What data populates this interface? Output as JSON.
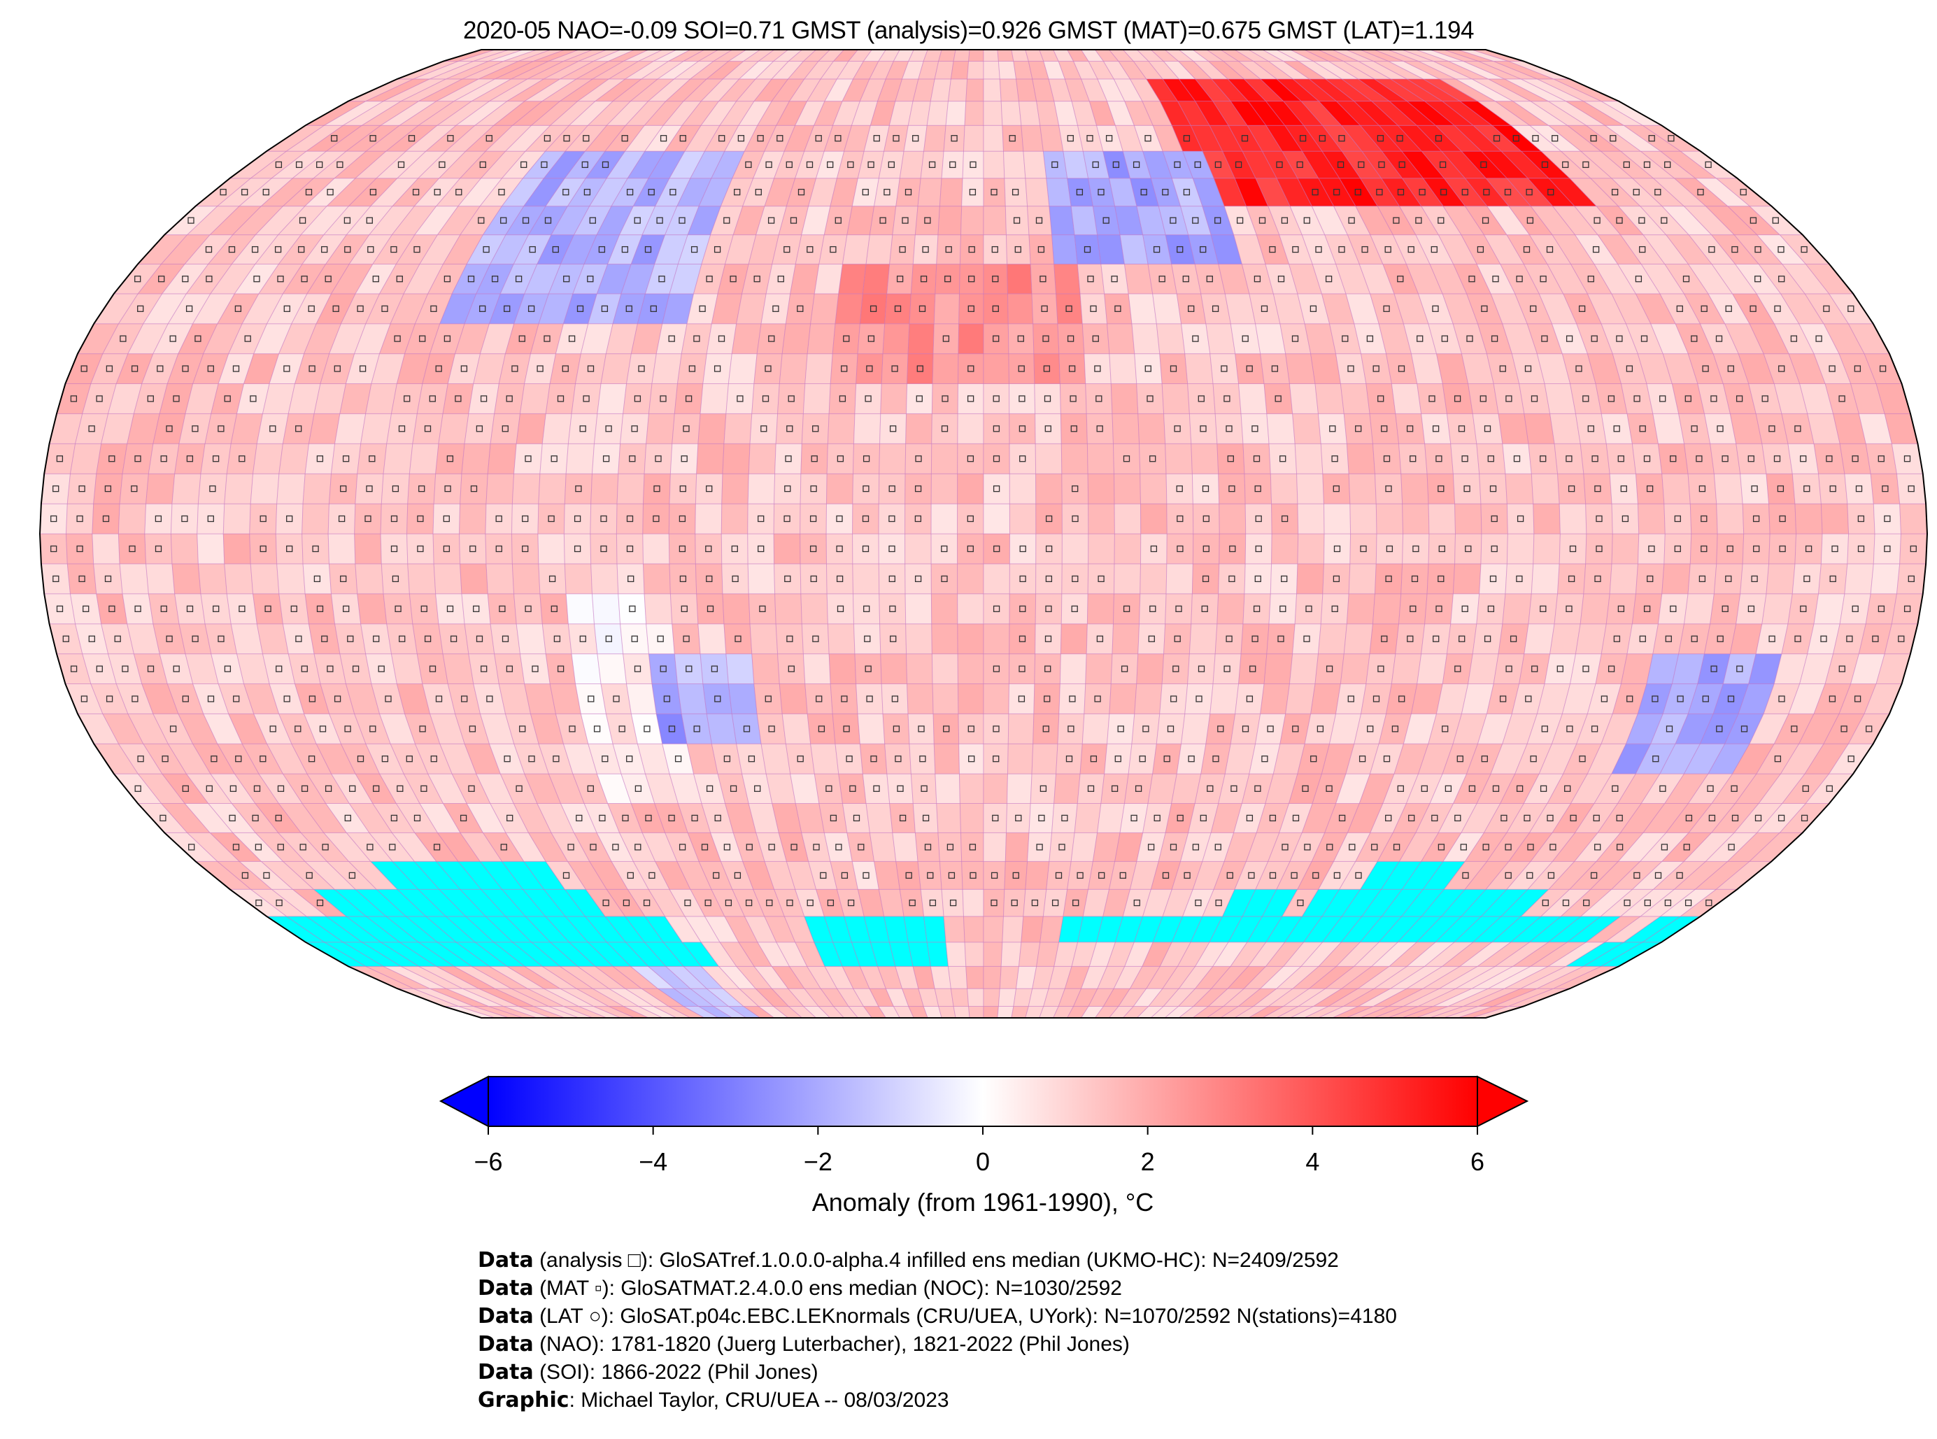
{
  "title": "2020-05 NAO=-0.09 SOI=0.71 GMST (analysis)=0.926 GMST (MAT)=0.675 GMST (LAT)=1.194",
  "map": {
    "projection": "Robinson",
    "grid_resolution_deg": 5,
    "missing_color": "#00ffff",
    "gridline_color": "#c070c0"
  },
  "colorbar": {
    "label": "Anomaly (from 1961-1990), °C",
    "min": -6,
    "max": 6,
    "ticks": [
      "−6",
      "−4",
      "−2",
      "0",
      "2",
      "4",
      "6"
    ],
    "tick_values": [
      -6,
      -4,
      -2,
      0,
      2,
      4,
      6
    ],
    "low_color": "#0000ff",
    "mid_color": "#ffffff",
    "high_color": "#ff0000"
  },
  "footer": [
    {
      "bold": "Data",
      "text": " (analysis □): GloSATref.1.0.0.0-alpha.4 infilled ens median (UKMO-HC): N=2409/2592"
    },
    {
      "bold": "Data",
      "text": " (MAT ▫): GloSATMAT.2.4.0.0 ens median (NOC): N=1030/2592"
    },
    {
      "bold": "Data",
      "text": " (LAT ○): GloSAT.p04c.EBC.LEKnormals (CRU/UEA, UYork): N=1070/2592 N(stations)=4180"
    },
    {
      "bold": "Data",
      "text": " (NAO): 1781-1820 (Juerg Luterbacher), 1821-2022 (Phil Jones)"
    },
    {
      "bold": "Data",
      "text": " (SOI): 1866-2022 (Phil Jones)"
    },
    {
      "bold": "Graphic",
      "text": ": Michael Taylor, CRU/UEA -- 08/03/2023"
    }
  ]
}
